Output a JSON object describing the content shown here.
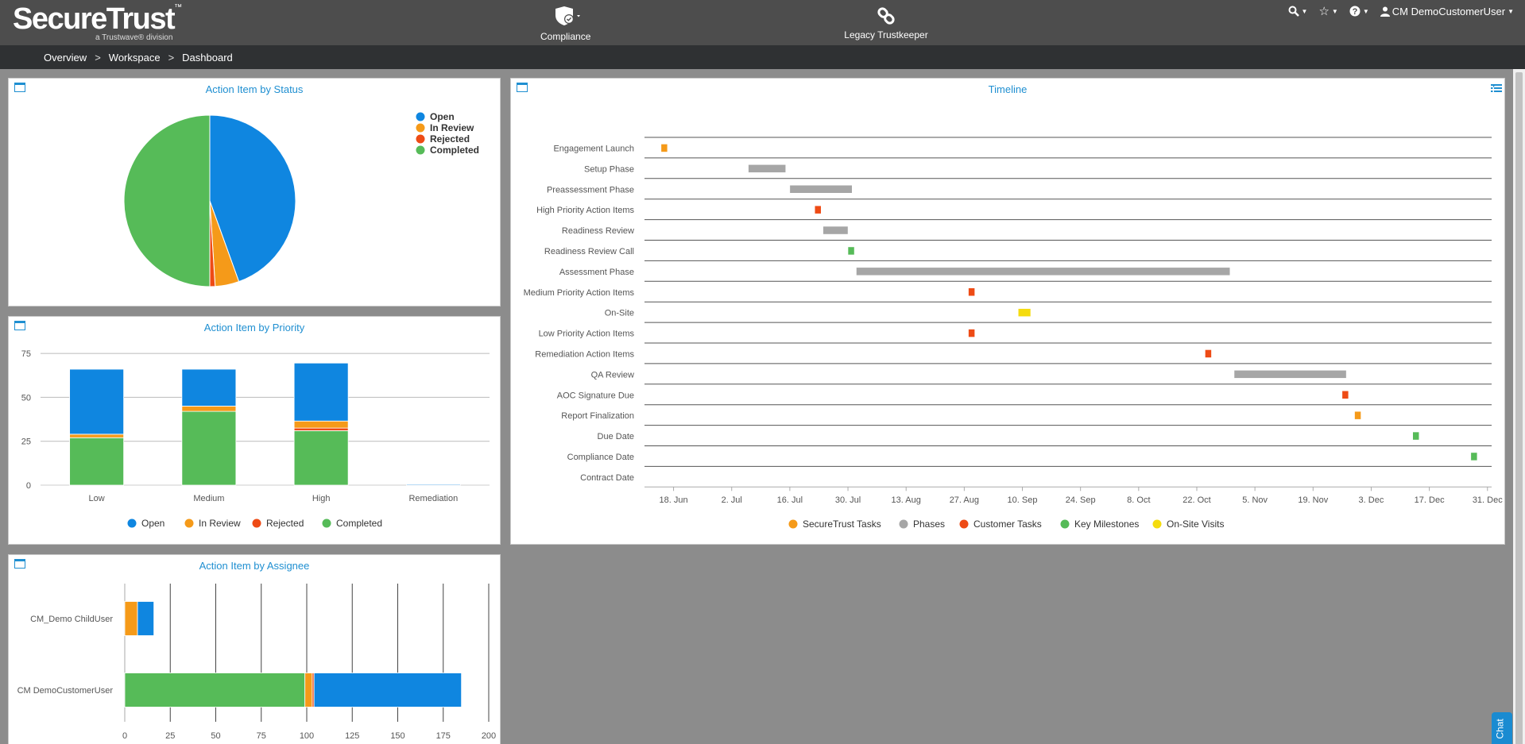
{
  "header": {
    "brand": "SecureTrust",
    "tm": "™",
    "subbrand": "a Trustwave® division",
    "nav": [
      {
        "label": "Compliance",
        "icon": "shield-check-icon"
      },
      {
        "label": "Legacy Trustkeeper",
        "icon": "chain-link-icon"
      }
    ],
    "user": "CM DemoCustomerUser"
  },
  "breadcrumb": [
    "Overview",
    "Workspace",
    "Dashboard"
  ],
  "colors": {
    "open": "#0f86e0",
    "in_review": "#f59a19",
    "rejected": "#ee4b15",
    "completed": "#56bb58",
    "phase": "#a6a6a6",
    "onsite": "#f5dc0e",
    "title": "#1f8fd1"
  },
  "status_panel": {
    "title": "Action Item by Status",
    "chart_data": {
      "type": "pie",
      "labels": [
        "Open",
        "In Review",
        "Rejected",
        "Completed"
      ],
      "values": [
        44.5,
        4.5,
        1.0,
        50.0
      ]
    }
  },
  "priority_panel": {
    "title": "Action Item by Priority",
    "chart_data": {
      "type": "bar",
      "stacked": true,
      "categories": [
        "Low",
        "Medium",
        "High",
        "Remediation"
      ],
      "series": [
        {
          "name": "Completed",
          "values": [
            27,
            42,
            31,
            0
          ]
        },
        {
          "name": "Rejected",
          "values": [
            0,
            0,
            1.5,
            0
          ]
        },
        {
          "name": "In Review",
          "values": [
            2,
            3,
            4,
            0
          ]
        },
        {
          "name": "Open",
          "values": [
            37,
            21,
            33,
            0.5
          ]
        }
      ],
      "yticks": [
        0,
        25,
        50,
        75
      ],
      "ylim": [
        0,
        80
      ],
      "legend": [
        "Open",
        "In Review",
        "Rejected",
        "Completed"
      ]
    }
  },
  "assignee_panel": {
    "title": "Action Item by Assignee",
    "chart_data": {
      "type": "bar",
      "orientation": "horizontal",
      "stacked": true,
      "categories": [
        "CM_Demo ChildUser",
        "CM DemoCustomerUser"
      ],
      "series": [
        {
          "name": "Completed",
          "values": [
            0,
            99
          ]
        },
        {
          "name": "In Review",
          "values": [
            7,
            4
          ]
        },
        {
          "name": "Rejected",
          "values": [
            0,
            1
          ]
        },
        {
          "name": "Open",
          "values": [
            9,
            81
          ]
        }
      ],
      "xticks": [
        0,
        25,
        50,
        75,
        100,
        125,
        150,
        175,
        200
      ],
      "xlim": [
        0,
        200
      ]
    }
  },
  "timeline_panel": {
    "title": "Timeline",
    "chart_data": {
      "type": "gantt",
      "x_start": "2018-06-11",
      "x_end": "2019-01-01",
      "x_tick_labels": [
        "18. Jun",
        "2. Jul",
        "16. Jul",
        "30. Jul",
        "13. Aug",
        "27. Aug",
        "10. Sep",
        "24. Sep",
        "8. Oct",
        "22. Oct",
        "5. Nov",
        "19. Nov",
        "3. Dec",
        "17. Dec",
        "31. Dec"
      ],
      "x_tick_dates": [
        "2018-06-18",
        "2018-07-02",
        "2018-07-16",
        "2018-07-30",
        "2018-08-13",
        "2018-08-27",
        "2018-09-10",
        "2018-09-24",
        "2018-10-08",
        "2018-10-22",
        "2018-11-05",
        "2018-11-19",
        "2018-12-03",
        "2018-12-17",
        "2018-12-31"
      ],
      "rows": [
        {
          "label": "Engagement Launch",
          "start": "2018-06-15",
          "end": "2018-06-16",
          "type": "SecureTrust Tasks"
        },
        {
          "label": "Setup Phase",
          "start": "2018-07-06",
          "end": "2018-07-15",
          "type": "Phases"
        },
        {
          "label": "Preassessment Phase",
          "start": "2018-07-16",
          "end": "2018-07-31",
          "type": "Phases"
        },
        {
          "label": "High Priority Action Items",
          "start": "2018-07-22",
          "end": "2018-07-23",
          "type": "Customer Tasks"
        },
        {
          "label": "Readiness Review",
          "start": "2018-07-24",
          "end": "2018-07-30",
          "type": "Phases"
        },
        {
          "label": "Readiness Review Call",
          "start": "2018-07-30",
          "end": "2018-07-31",
          "type": "Key Milestones"
        },
        {
          "label": "Assessment Phase",
          "start": "2018-08-01",
          "end": "2018-10-30",
          "type": "Phases"
        },
        {
          "label": "Medium Priority Action Items",
          "start": "2018-08-28",
          "end": "2018-08-29",
          "type": "Customer Tasks"
        },
        {
          "label": "On-Site",
          "start": "2018-09-09",
          "end": "2018-09-12",
          "type": "On-Site Visits"
        },
        {
          "label": "Low Priority Action Items",
          "start": "2018-08-28",
          "end": "2018-08-29",
          "type": "Customer Tasks"
        },
        {
          "label": "Remediation Action Items",
          "start": "2018-10-24",
          "end": "2018-10-25",
          "type": "Customer Tasks"
        },
        {
          "label": "QA Review",
          "start": "2018-10-31",
          "end": "2018-11-27",
          "type": "Phases"
        },
        {
          "label": "AOC Signature Due",
          "start": "2018-11-26",
          "end": "2018-11-27",
          "type": "Customer Tasks"
        },
        {
          "label": "Report Finalization",
          "start": "2018-11-29",
          "end": "2018-11-30",
          "type": "SecureTrust Tasks"
        },
        {
          "label": "Due Date",
          "start": "2018-12-13",
          "end": "2018-12-14",
          "type": "Key Milestones"
        },
        {
          "label": "Compliance Date",
          "start": "2018-12-27",
          "end": "2018-12-28",
          "type": "Key Milestones"
        },
        {
          "label": "Contract Date",
          "start": null,
          "end": null,
          "type": null
        }
      ],
      "legend": [
        "SecureTrust Tasks",
        "Phases",
        "Customer Tasks",
        "Key Milestones",
        "On-Site Visits"
      ]
    }
  },
  "chat_label": "Chat"
}
